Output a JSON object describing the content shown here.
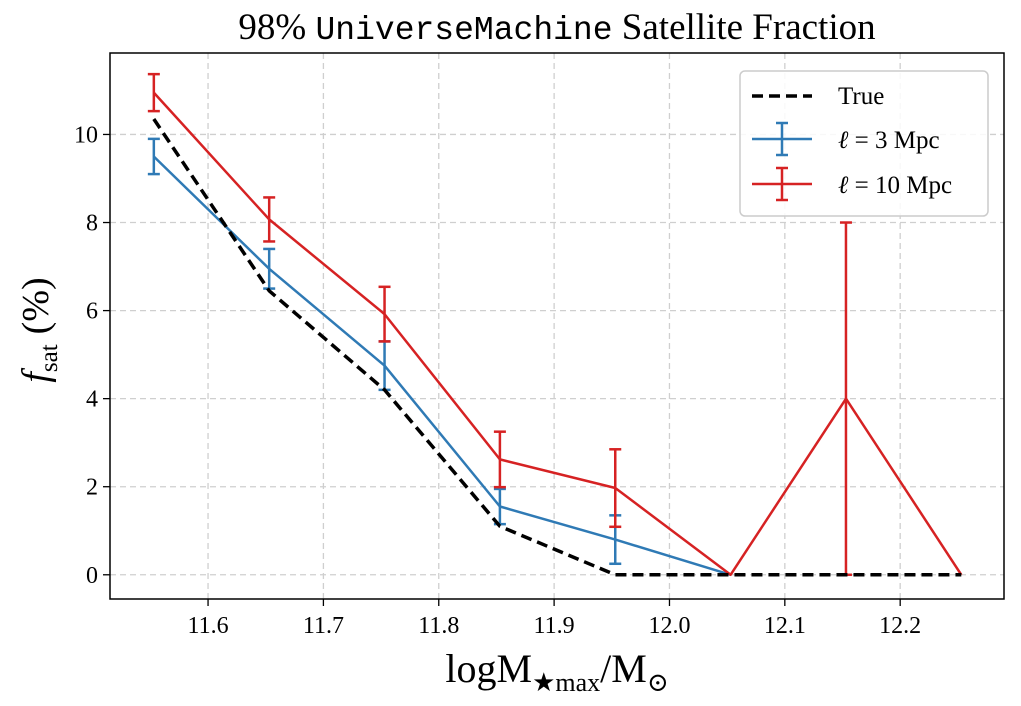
{
  "chart_data": {
    "type": "line",
    "title_number": "98%",
    "title_mono": "UniverseMachine",
    "title_rest": "Satellite Fraction",
    "xlabel_main": "logM",
    "xlabel_sub": "★max",
    "xlabel_tail": "/M",
    "xlabel_sun": "⊙",
    "ylabel_f": "f",
    "ylabel_sub": "sat",
    "ylabel_unit": "(%)",
    "xlim": [
      11.515,
      12.29
    ],
    "ylim": [
      -0.55,
      11.85
    ],
    "xticks": [
      11.6,
      11.7,
      11.8,
      11.9,
      12.0,
      12.1,
      12.2
    ],
    "xtick_labels": [
      "11.6",
      "11.7",
      "11.8",
      "11.9",
      "12.0",
      "12.1",
      "12.2"
    ],
    "yticks": [
      0,
      2,
      4,
      6,
      8,
      10
    ],
    "ytick_labels": [
      "0",
      "2",
      "4",
      "6",
      "8",
      "10"
    ],
    "grid": true,
    "legend_position": "top-right",
    "series": [
      {
        "name": "True",
        "style": "dashed",
        "color": "#000000",
        "x": [
          11.553,
          11.653,
          11.753,
          11.853,
          11.953,
          12.053,
          12.153,
          12.253
        ],
        "y": [
          10.35,
          6.45,
          4.2,
          1.1,
          0.0,
          0.0,
          0.0,
          0.0
        ]
      },
      {
        "name": "ℓ = 3 Mpc",
        "style": "solid-errorbar",
        "color": "#2f7ab5",
        "x": [
          11.553,
          11.653,
          11.753,
          11.853,
          11.953,
          12.053
        ],
        "y": [
          9.5,
          6.95,
          4.75,
          1.55,
          0.8,
          0.0
        ],
        "yerr": [
          0.4,
          0.45,
          0.55,
          0.4,
          0.55,
          0.0
        ]
      },
      {
        "name": "ℓ = 10 Mpc",
        "style": "solid-errorbar",
        "color": "#d62223",
        "x": [
          11.553,
          11.653,
          11.753,
          11.853,
          11.953,
          12.053,
          12.153,
          12.253
        ],
        "y": [
          10.95,
          8.07,
          5.92,
          2.62,
          1.97,
          0.0,
          4.0,
          0.0
        ],
        "yerr": [
          0.42,
          0.5,
          0.62,
          0.63,
          0.88,
          0.0,
          4.0,
          0.0
        ]
      }
    ]
  }
}
